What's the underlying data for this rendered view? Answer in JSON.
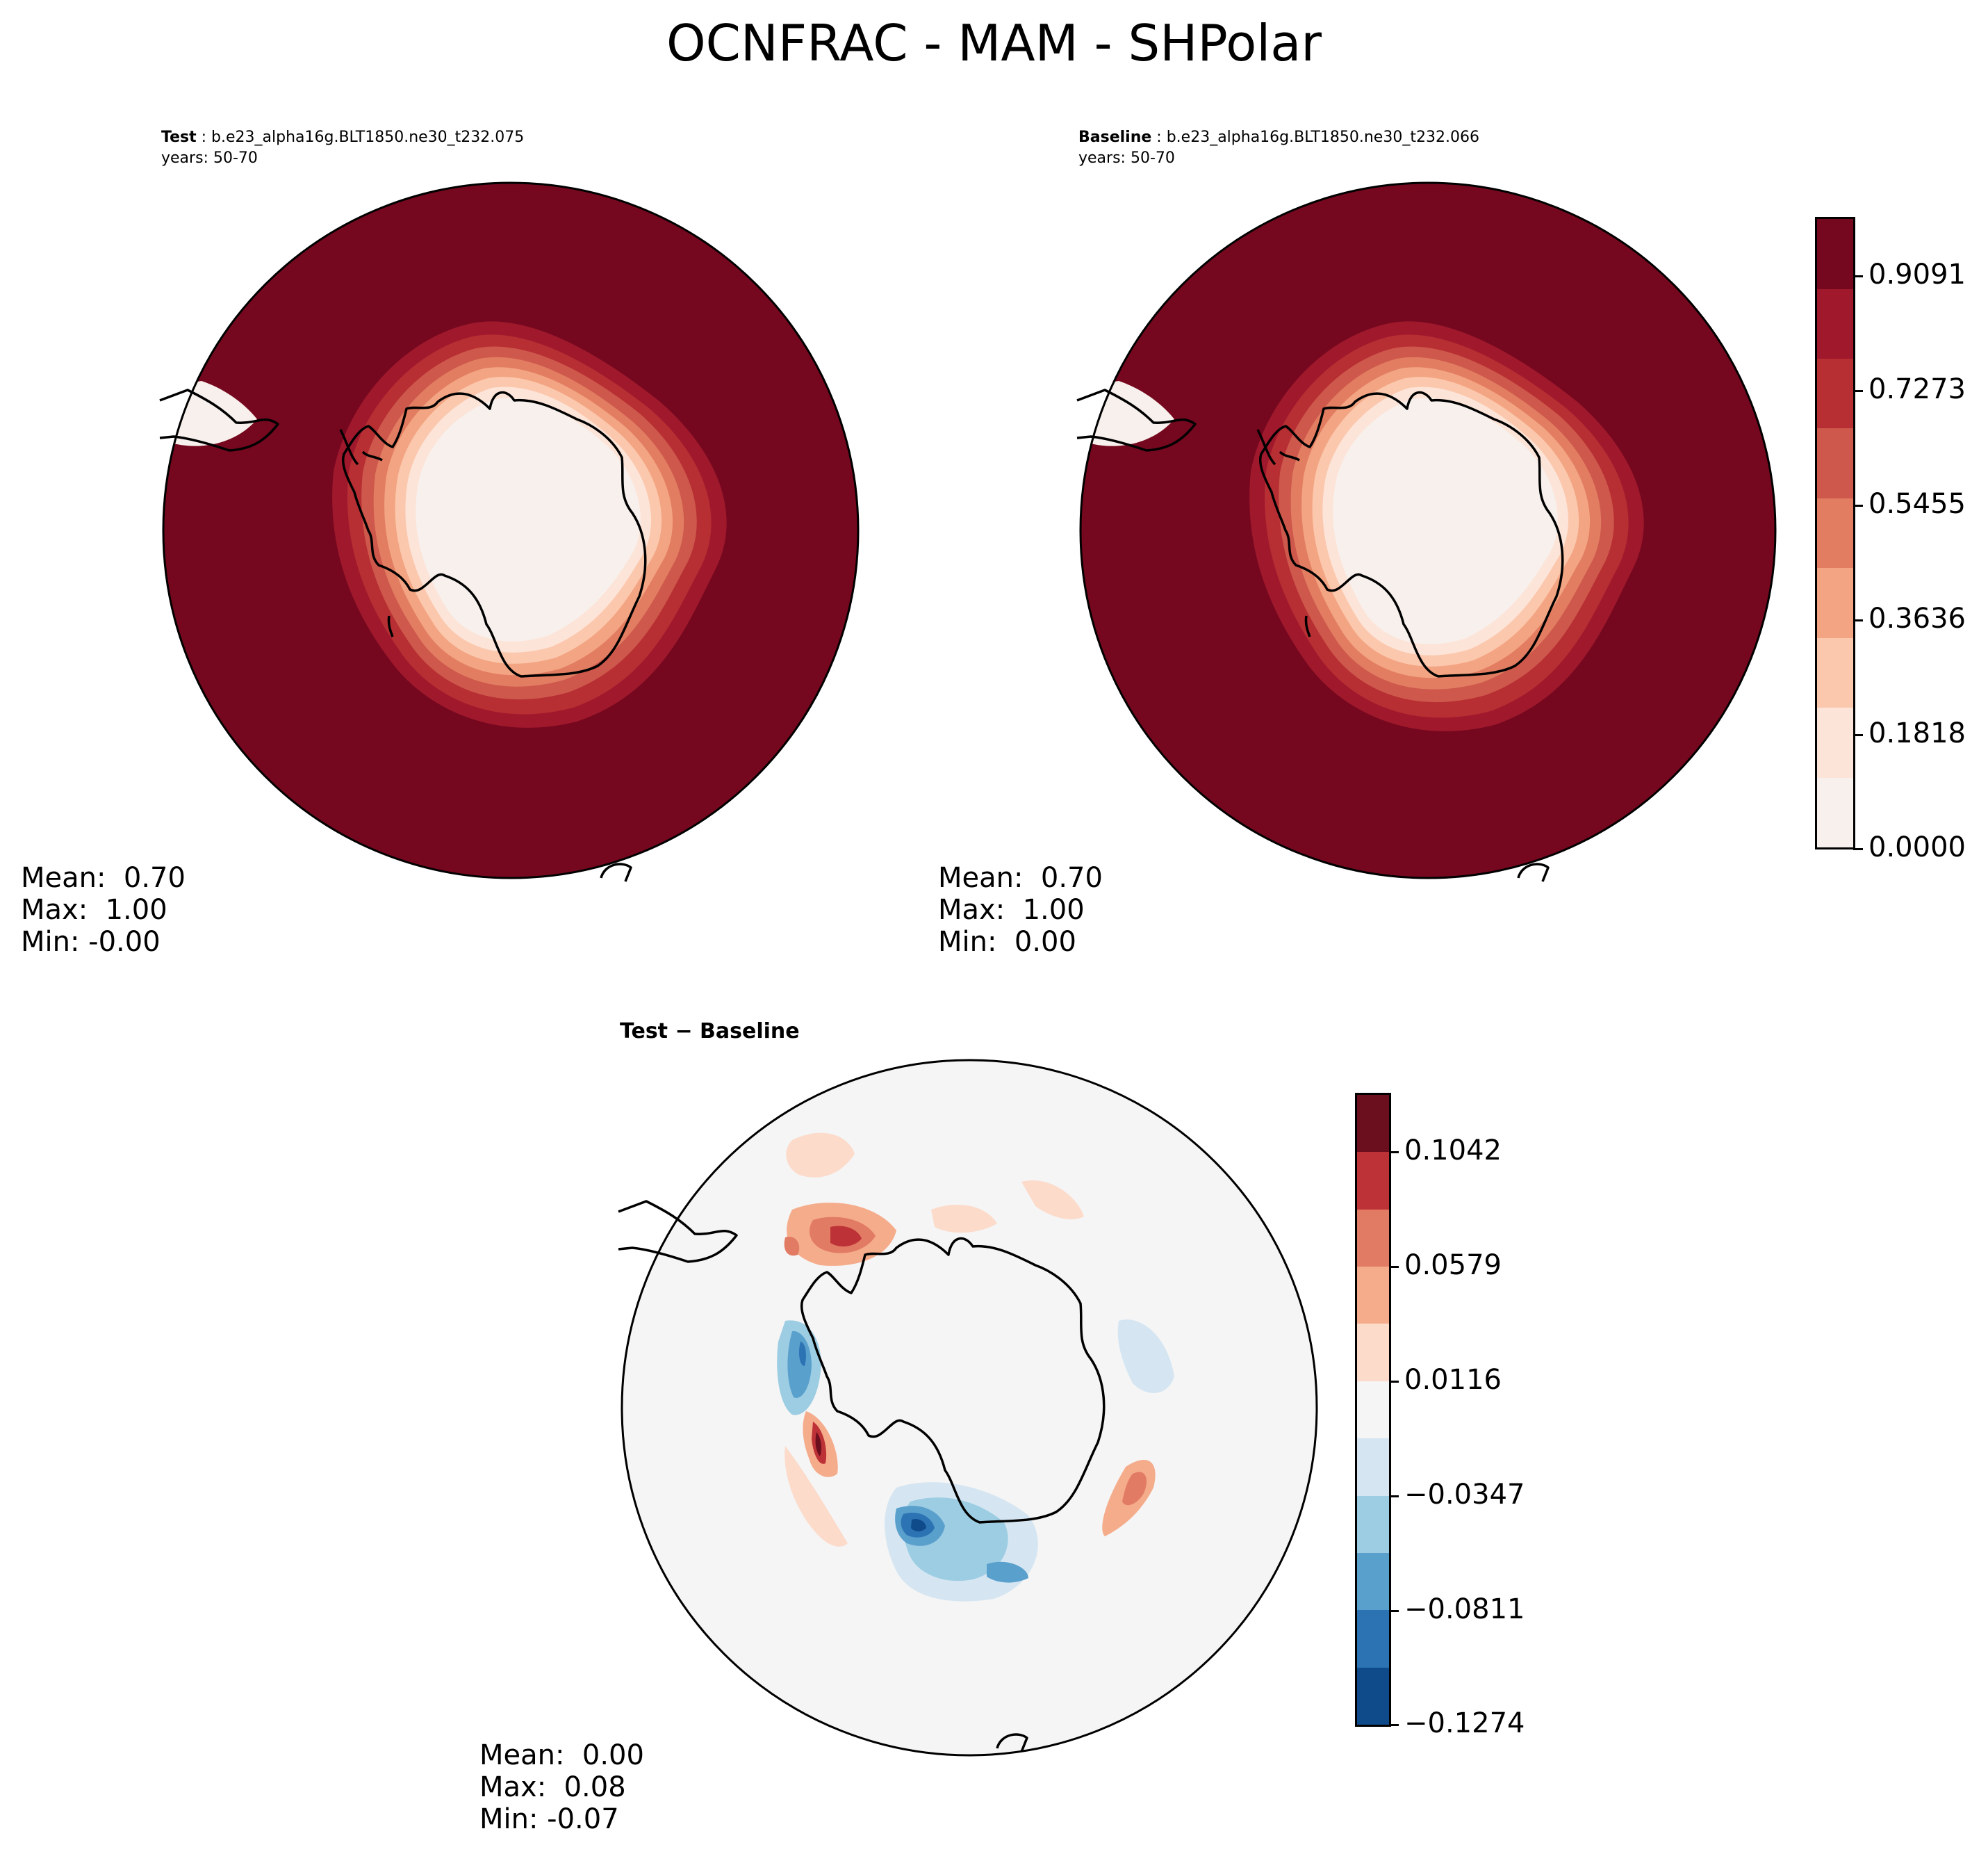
{
  "figure": {
    "title": "OCNFRAC - MAM - SHPolar"
  },
  "panels": {
    "test": {
      "label": "Test",
      "case": "b.e23_alpha16g.BLT1850.ne30_t232.075",
      "years": "years: 50-70",
      "mean": "Mean:  0.70",
      "max": "Max:  1.00",
      "min": "Min: -0.00"
    },
    "baseline": {
      "label": "Baseline",
      "case": "b.e23_alpha16g.BLT1850.ne30_t232.066",
      "years": "years: 50-70",
      "mean": "Mean:  0.70",
      "max": "Max:  1.00",
      "min": "Min:  0.00"
    },
    "diff": {
      "label": "Test − Baseline",
      "mean": "Mean:  0.00",
      "max": "Max:  0.08",
      "min": "Min: -0.07"
    }
  },
  "colorbars": {
    "main": {
      "colors": [
        "#f7f0ec",
        "#fde4d8",
        "#fbc8ad",
        "#f3a482",
        "#e27d62",
        "#cd584b",
        "#b72e33",
        "#a0182c",
        "#75081f"
      ],
      "ticks": [
        "0.9091",
        "0.7273",
        "0.5455",
        "0.3636",
        "0.1818",
        "0.0000"
      ]
    },
    "diff": {
      "colors": [
        "#6b0f1f",
        "#bd3237",
        "#e27b63",
        "#f5ac8b",
        "#fcdbcb",
        "#f5f5f5",
        "#d5e6f2",
        "#9dcde3",
        "#5aa0cd",
        "#2c73b4",
        "#0f4a8a"
      ],
      "ticks": [
        "0.1042",
        "0.0579",
        "0.0116",
        "−0.0347",
        "−0.0811",
        "−0.1274"
      ]
    }
  }
}
